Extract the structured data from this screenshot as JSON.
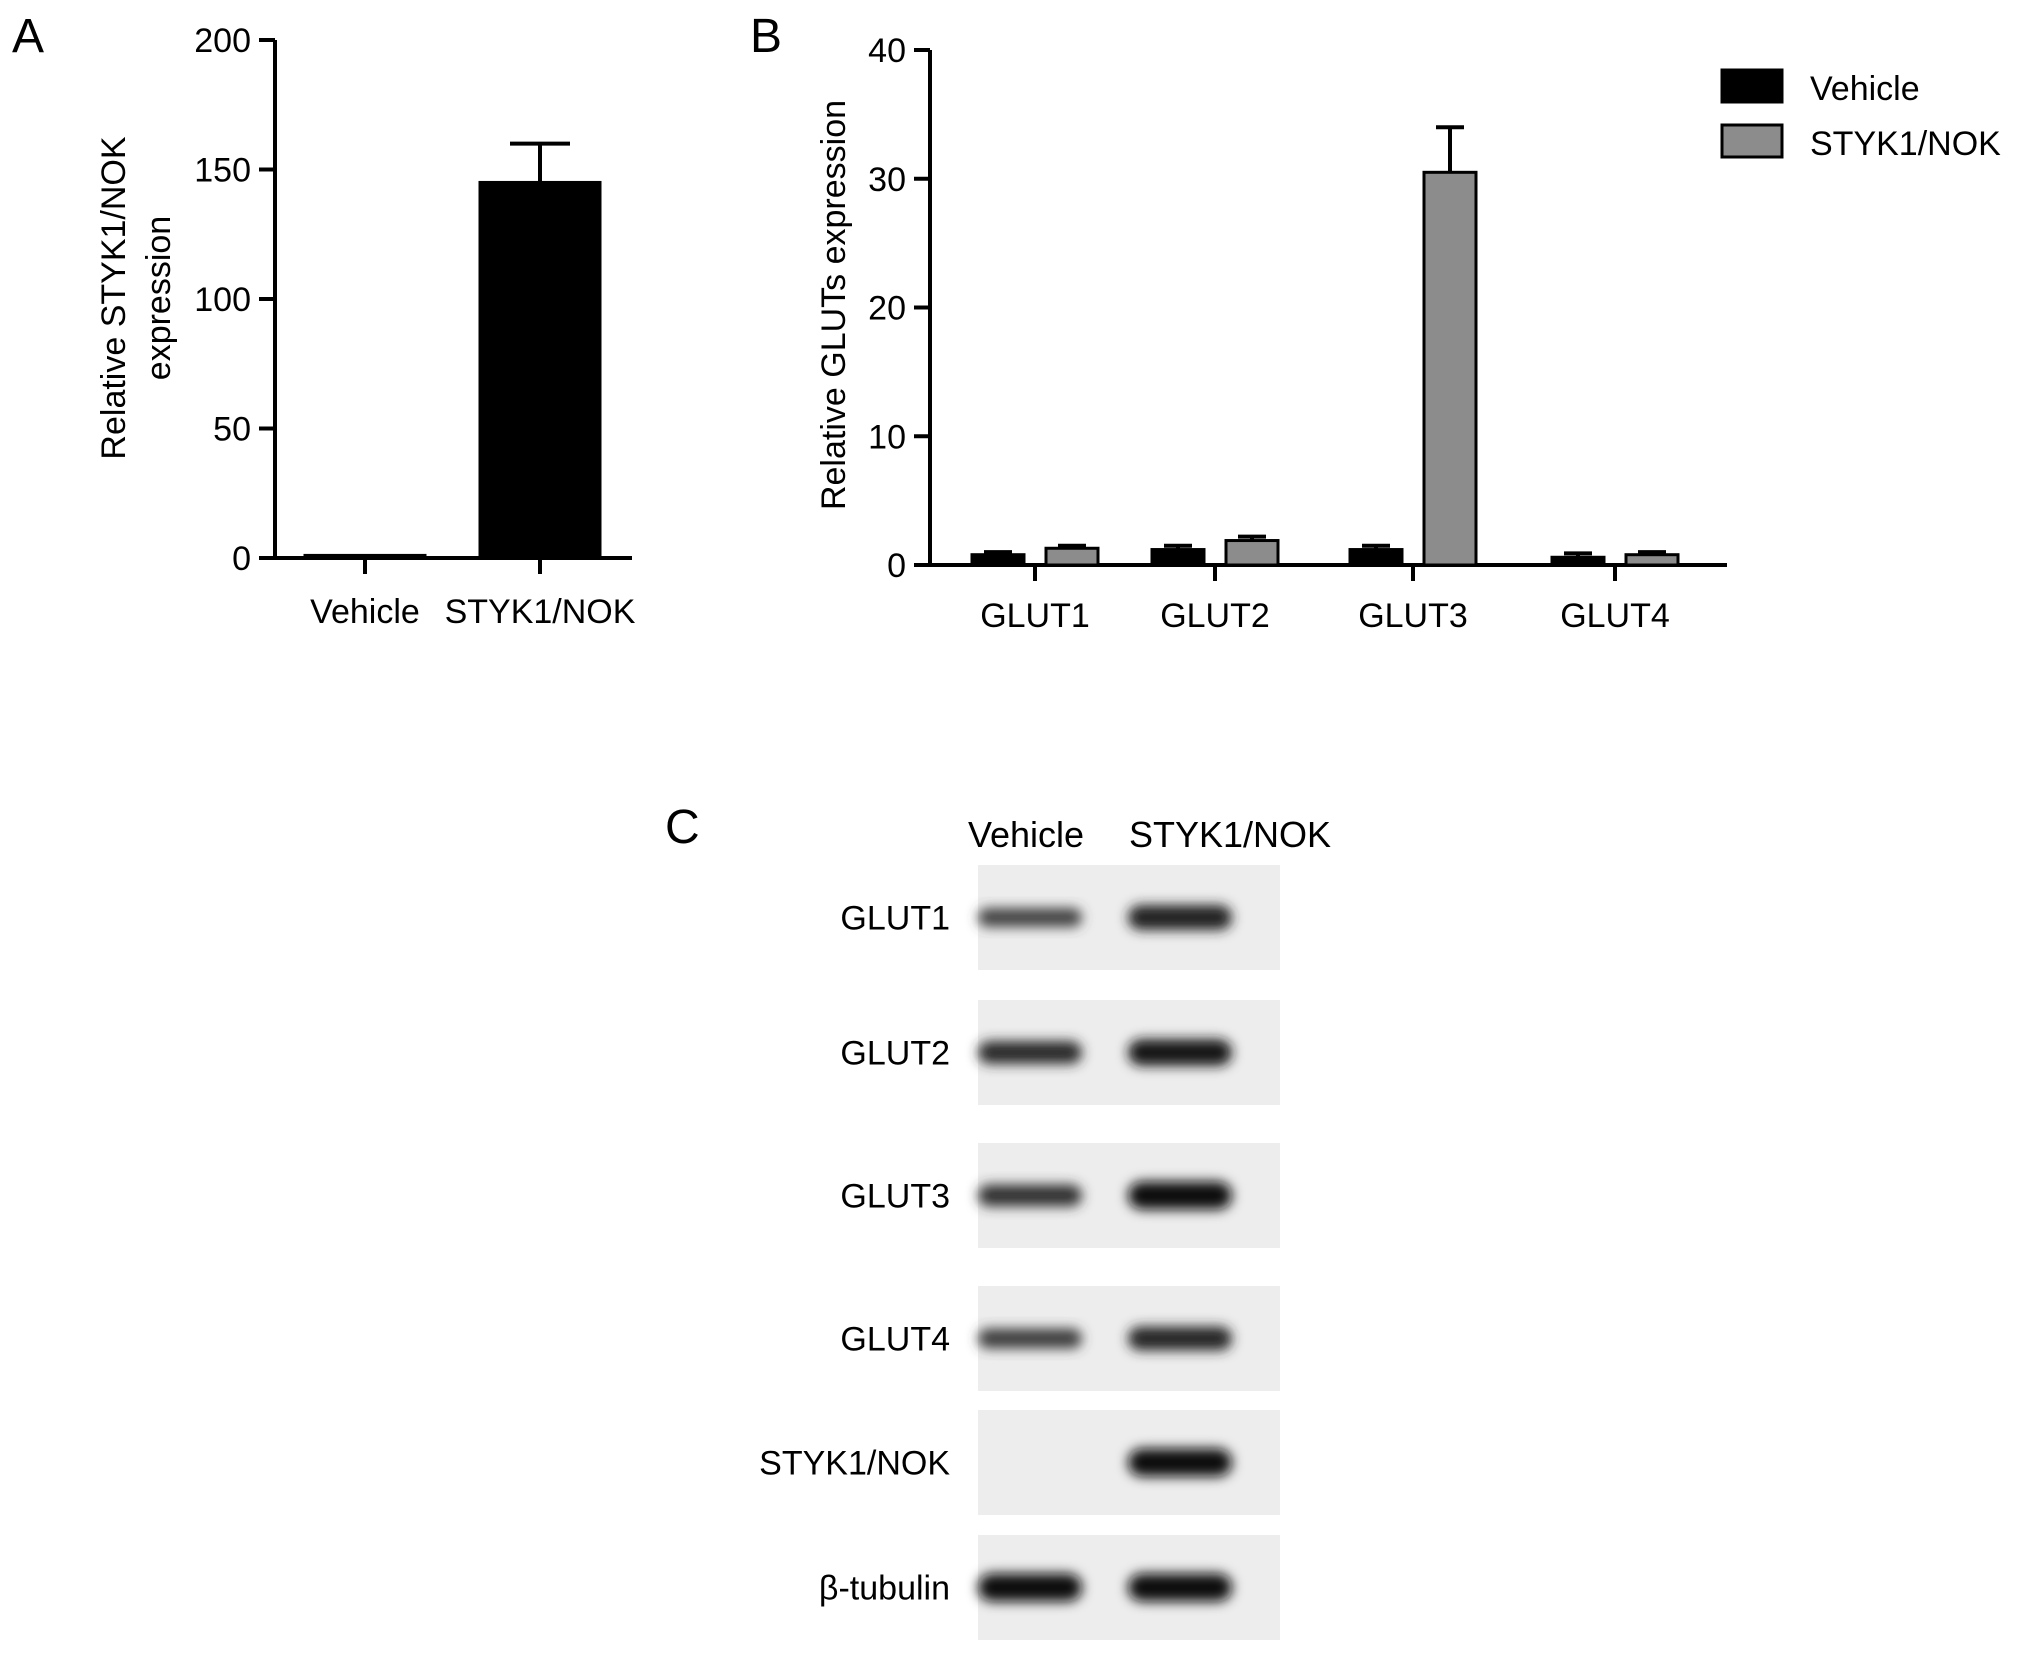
{
  "panels": {
    "a": {
      "letter": "A",
      "chart_data": {
        "type": "bar",
        "categories": [
          "Vehicle",
          "STYK1/NOK"
        ],
        "values": [
          1,
          145
        ],
        "errors": [
          0,
          15
        ],
        "colors": [
          "#000000",
          "#000000"
        ],
        "ylabel": [
          "Relative STYK1/NOK",
          "expression"
        ],
        "ylim": [
          0,
          200
        ],
        "yticks": [
          0,
          50,
          100,
          150,
          200
        ],
        "grid": false
      }
    },
    "b": {
      "letter": "B",
      "chart_data": {
        "type": "bar",
        "categories": [
          "GLUT1",
          "GLUT2",
          "GLUT3",
          "GLUT4"
        ],
        "series": [
          {
            "name": "Vehicle",
            "color": "#000000",
            "values": [
              0.8,
              1.2,
              1.2,
              0.6
            ],
            "errors": [
              0.2,
              0.3,
              0.3,
              0.3
            ]
          },
          {
            "name": "STYK1/NOK",
            "color": "#8c8c8c",
            "values": [
              1.3,
              1.9,
              30.5,
              0.8
            ],
            "errors": [
              0.2,
              0.3,
              3.5,
              0.2
            ]
          }
        ],
        "ylabel": "Relative GLUTs expression",
        "ylim": [
          0,
          40
        ],
        "yticks": [
          0,
          10,
          20,
          30,
          40
        ],
        "legend": "top-right",
        "grid": false
      }
    },
    "c": {
      "letter": "C",
      "columns": [
        "Vehicle",
        "STYK1/NOK"
      ],
      "rows": [
        {
          "label": "GLUT1",
          "intensity": [
            0.55,
            0.85
          ]
        },
        {
          "label": "GLUT2",
          "intensity": [
            0.75,
            0.92
          ]
        },
        {
          "label": "GLUT3",
          "intensity": [
            0.7,
            1.0
          ]
        },
        {
          "label": "GLUT4",
          "intensity": [
            0.6,
            0.8
          ]
        },
        {
          "label": "STYK1/NOK",
          "intensity": [
            0.0,
            1.0
          ]
        },
        {
          "label": "β-tubulin",
          "intensity": [
            1.0,
            1.0
          ]
        }
      ]
    }
  }
}
